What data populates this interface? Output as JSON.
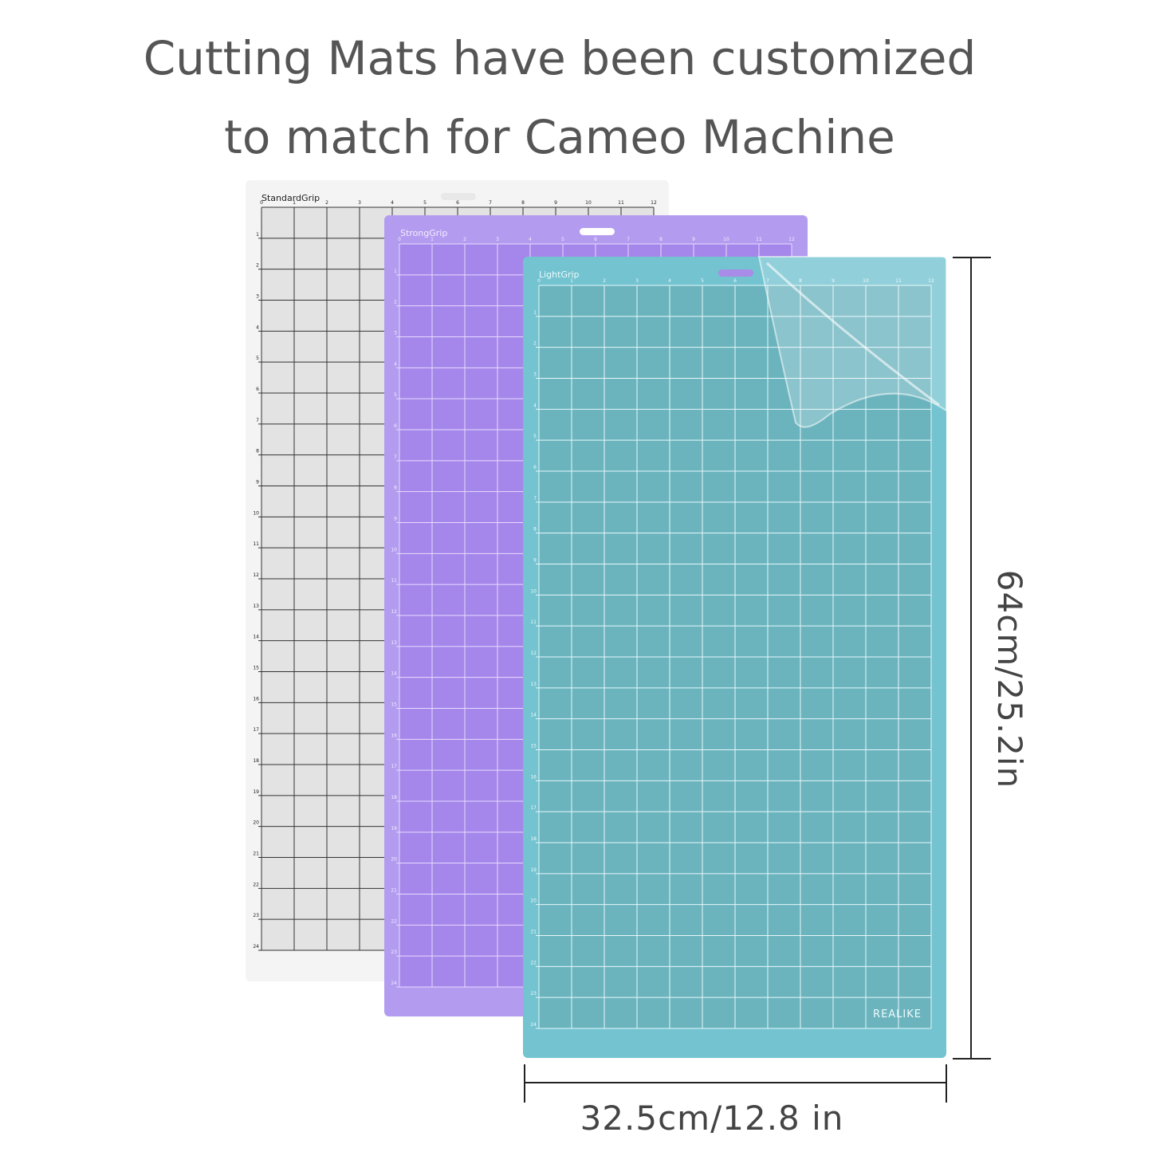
{
  "title": {
    "line1": "Cutting Mats have been customized",
    "line2": "to match for Cameo Machine"
  },
  "mats": [
    {
      "label": "StandardGrip"
    },
    {
      "label": "StrongGrip"
    },
    {
      "label": "LightGrip"
    }
  ],
  "ruler": {
    "columns": [
      0,
      1,
      2,
      3,
      4,
      5,
      6,
      7,
      8,
      9,
      10,
      11,
      12
    ],
    "rows": [
      1,
      2,
      3,
      4,
      5,
      6,
      7,
      8,
      9,
      10,
      11,
      12,
      13,
      14,
      15,
      16,
      17,
      18,
      19,
      20,
      21,
      22,
      23,
      24
    ]
  },
  "brand": "REALIKE",
  "dimensions": {
    "height": "64cm/25.2in",
    "width": "32.5cm/12.8 in"
  }
}
